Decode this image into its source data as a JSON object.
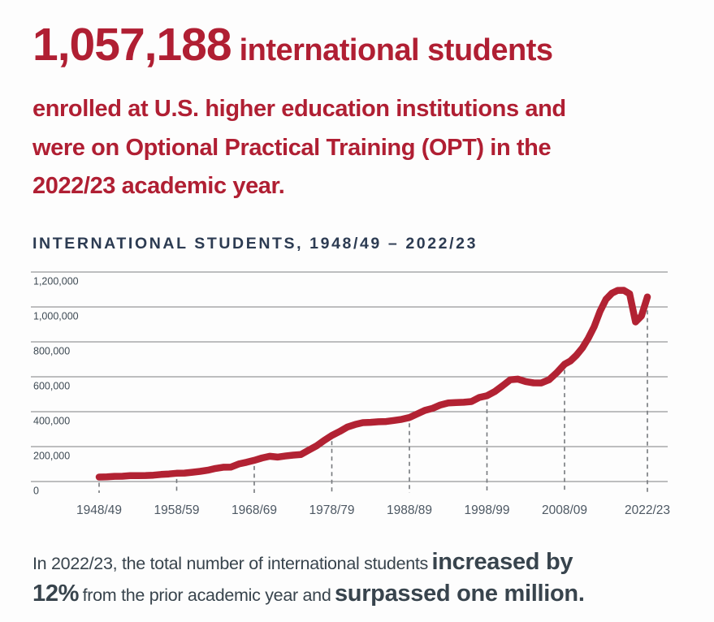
{
  "headline": {
    "number": "1,057,188",
    "rest": "international students",
    "line2": "enrolled at U.S. higher education institutions and",
    "line3": "were on Optional Practical Training (OPT) in the",
    "line4": "2022/23 academic year.",
    "color": "#b01f33"
  },
  "chart": {
    "title": "INTERNATIONAL STUDENTS, 1948/49 – 2022/23",
    "title_color": "#2c3b52"
  },
  "chart_data": {
    "type": "line",
    "title": "INTERNATIONAL STUDENTS, 1948/49 – 2022/23",
    "xlabel": "",
    "ylabel": "",
    "ylim": [
      0,
      1200000
    ],
    "xlim_years": [
      1948,
      2022
    ],
    "grid": "horizontal",
    "legend": "none",
    "line_color": "#b22233",
    "grid_color": "#97989a",
    "tick_dash_color": "#76797d",
    "y_ticks": [
      0,
      200000,
      400000,
      600000,
      800000,
      1000000,
      1200000
    ],
    "y_tick_labels": [
      "0",
      "200,000",
      "400,000",
      "600,000",
      "800,000",
      "1,000,000",
      "1,200,000"
    ],
    "x_tick_years": [
      1948,
      1958,
      1968,
      1978,
      1988,
      1998,
      2008,
      2022
    ],
    "x_tick_labels": [
      "1948/49",
      "1958/59",
      "1968/69",
      "1978/79",
      "1988/89",
      "1998/99",
      "2008/09",
      "2022/23"
    ],
    "series": [
      {
        "name": "International students",
        "points": [
          [
            1948,
            25464
          ],
          [
            1949,
            26433
          ],
          [
            1950,
            29813
          ],
          [
            1951,
            30462
          ],
          [
            1952,
            33675
          ],
          [
            1953,
            33833
          ],
          [
            1954,
            34232
          ],
          [
            1955,
            36494
          ],
          [
            1956,
            40666
          ],
          [
            1957,
            43391
          ],
          [
            1958,
            47245
          ],
          [
            1959,
            48486
          ],
          [
            1960,
            53107
          ],
          [
            1961,
            58086
          ],
          [
            1962,
            64705
          ],
          [
            1963,
            74814
          ],
          [
            1964,
            82045
          ],
          [
            1965,
            82709
          ],
          [
            1966,
            100262
          ],
          [
            1967,
            110315
          ],
          [
            1968,
            121362
          ],
          [
            1969,
            134959
          ],
          [
            1970,
            144708
          ],
          [
            1971,
            140126
          ],
          [
            1972,
            146097
          ],
          [
            1973,
            151066
          ],
          [
            1974,
            154580
          ],
          [
            1975,
            179344
          ],
          [
            1976,
            203068
          ],
          [
            1977,
            235509
          ],
          [
            1978,
            263938
          ],
          [
            1979,
            286343
          ],
          [
            1980,
            311882
          ],
          [
            1981,
            326299
          ],
          [
            1982,
            336985
          ],
          [
            1983,
            338894
          ],
          [
            1984,
            342113
          ],
          [
            1985,
            343777
          ],
          [
            1986,
            349609
          ],
          [
            1987,
            356187
          ],
          [
            1988,
            366354
          ],
          [
            1989,
            386851
          ],
          [
            1990,
            407529
          ],
          [
            1991,
            419585
          ],
          [
            1992,
            438618
          ],
          [
            1993,
            449749
          ],
          [
            1994,
            452635
          ],
          [
            1995,
            453787
          ],
          [
            1996,
            457984
          ],
          [
            1997,
            481280
          ],
          [
            1998,
            490933
          ],
          [
            1999,
            514723
          ],
          [
            2000,
            547867
          ],
          [
            2001,
            582996
          ],
          [
            2002,
            586323
          ],
          [
            2003,
            572509
          ],
          [
            2004,
            565039
          ],
          [
            2005,
            564766
          ],
          [
            2006,
            582984
          ],
          [
            2007,
            623805
          ],
          [
            2008,
            671616
          ],
          [
            2009,
            690923
          ],
          [
            2010,
            723277
          ],
          [
            2011,
            764495
          ],
          [
            2012,
            819644
          ],
          [
            2013,
            886052
          ],
          [
            2014,
            974926
          ],
          [
            2015,
            1043839
          ],
          [
            2016,
            1078822
          ],
          [
            2017,
            1094792
          ],
          [
            2018,
            1095299
          ],
          [
            2019,
            1075496
          ],
          [
            2020,
            914095
          ],
          [
            2021,
            948519
          ],
          [
            2022,
            1057188
          ]
        ]
      }
    ]
  },
  "footer": {
    "line1_regular": "In 2022/23, the total number of international students",
    "line1_bold": "increased by",
    "line2_bold_a": "12%",
    "line2_regular": "from the prior academic year and",
    "line2_bold_b": "surpassed one million.",
    "color": "#38444d"
  }
}
